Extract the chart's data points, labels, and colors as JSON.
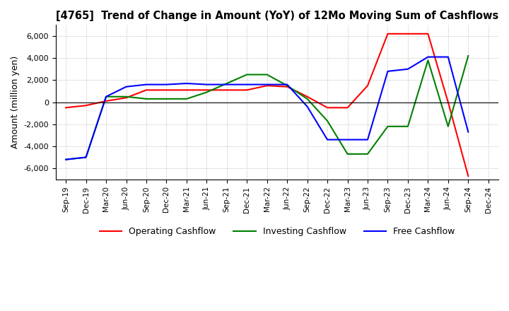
{
  "title": "[4765]  Trend of Change in Amount (YoY) of 12Mo Moving Sum of Cashflows",
  "ylabel": "Amount (million yen)",
  "x_labels": [
    "Sep-19",
    "Dec-19",
    "Mar-20",
    "Jun-20",
    "Sep-20",
    "Dec-20",
    "Mar-21",
    "Jun-21",
    "Sep-21",
    "Dec-21",
    "Mar-22",
    "Jun-22",
    "Sep-22",
    "Dec-22",
    "Mar-23",
    "Jun-23",
    "Sep-23",
    "Dec-23",
    "Mar-24",
    "Jun-24",
    "Sep-24",
    "Dec-24"
  ],
  "operating": [
    -500,
    -300,
    100,
    400,
    1100,
    1100,
    1100,
    1100,
    1100,
    1100,
    1500,
    1400,
    500,
    -500,
    -500,
    1500,
    6200,
    6200,
    6200,
    0,
    -6700,
    null
  ],
  "investing": [
    -5200,
    -5000,
    500,
    500,
    300,
    300,
    300,
    900,
    1700,
    2500,
    2500,
    1500,
    300,
    -1700,
    -4700,
    -4700,
    -2200,
    -2200,
    3800,
    -2200,
    4200,
    null
  ],
  "free": [
    -5200,
    -5000,
    500,
    1400,
    1600,
    1600,
    1700,
    1600,
    1600,
    1600,
    1600,
    1600,
    -400,
    -3400,
    -3400,
    -3400,
    2800,
    3000,
    4100,
    4100,
    -2700,
    null
  ],
  "ylim": [
    -7000,
    7000
  ],
  "yticks": [
    -6000,
    -4000,
    -2000,
    0,
    2000,
    4000,
    6000
  ],
  "colors": {
    "operating": "#FF0000",
    "investing": "#008000",
    "free": "#0000FF"
  },
  "legend": [
    "Operating Cashflow",
    "Investing Cashflow",
    "Free Cashflow"
  ],
  "background": "#FFFFFF",
  "grid_color": "#AAAAAA"
}
